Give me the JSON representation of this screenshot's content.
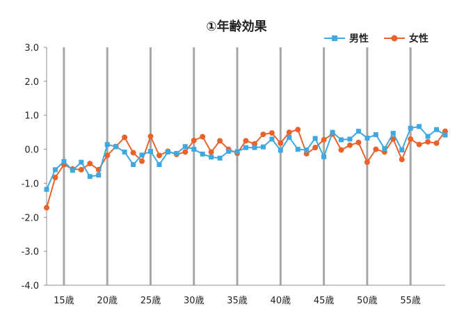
{
  "chart_data": {
    "type": "line",
    "title": "①年齢効果",
    "x_tick_labels": [
      "15歳",
      "20歳",
      "25歳",
      "30歳",
      "35歳",
      "40歳",
      "45歳",
      "50歳",
      "55歳"
    ],
    "y_tick_labels": [
      "3.0",
      "2.0",
      "1.0",
      "0.0",
      "-1.0",
      "-2.0",
      "-3.0",
      "-4.0"
    ],
    "ylim": [
      -4.0,
      3.0
    ],
    "xlim": [
      13,
      59
    ],
    "legend_position": "top-right",
    "grid": "vertical lines at labeled ages",
    "x": [
      13,
      14,
      15,
      16,
      17,
      18,
      19,
      20,
      21,
      22,
      23,
      24,
      25,
      26,
      27,
      28,
      29,
      30,
      31,
      32,
      33,
      34,
      35,
      36,
      37,
      38,
      39,
      40,
      41,
      42,
      43,
      44,
      45,
      46,
      47,
      48,
      49,
      50,
      51,
      52,
      53,
      54,
      55,
      56,
      57,
      58,
      59
    ],
    "series": [
      {
        "name": "男性",
        "color": "#3ea8e0",
        "marker": "square",
        "values": [
          -1.18,
          -0.6,
          -0.36,
          -0.62,
          -0.38,
          -0.8,
          -0.76,
          0.14,
          0.08,
          -0.08,
          -0.45,
          -0.17,
          -0.06,
          -0.45,
          -0.08,
          -0.12,
          0.08,
          0.0,
          -0.14,
          -0.23,
          -0.26,
          -0.06,
          -0.07,
          0.05,
          0.05,
          0.07,
          0.3,
          -0.03,
          0.35,
          0.0,
          -0.02,
          0.32,
          -0.22,
          0.5,
          0.28,
          0.3,
          0.53,
          0.33,
          0.43,
          0.02,
          0.47,
          -0.02,
          0.62,
          0.67,
          0.38,
          0.58,
          0.42
        ]
      },
      {
        "name": "女性",
        "color": "#e8622a",
        "marker": "circle",
        "values": [
          -1.72,
          -0.83,
          -0.45,
          -0.58,
          -0.6,
          -0.42,
          -0.6,
          -0.18,
          0.08,
          0.35,
          -0.1,
          -0.35,
          0.38,
          -0.18,
          -0.06,
          -0.15,
          -0.08,
          0.26,
          0.37,
          -0.08,
          0.25,
          0.0,
          -0.12,
          0.25,
          0.16,
          0.44,
          0.48,
          0.18,
          0.5,
          0.58,
          -0.13,
          0.05,
          0.28,
          0.45,
          -0.02,
          0.12,
          0.2,
          -0.38,
          0.0,
          -0.08,
          0.3,
          -0.3,
          0.3,
          0.14,
          0.22,
          0.18,
          0.53
        ]
      }
    ]
  }
}
